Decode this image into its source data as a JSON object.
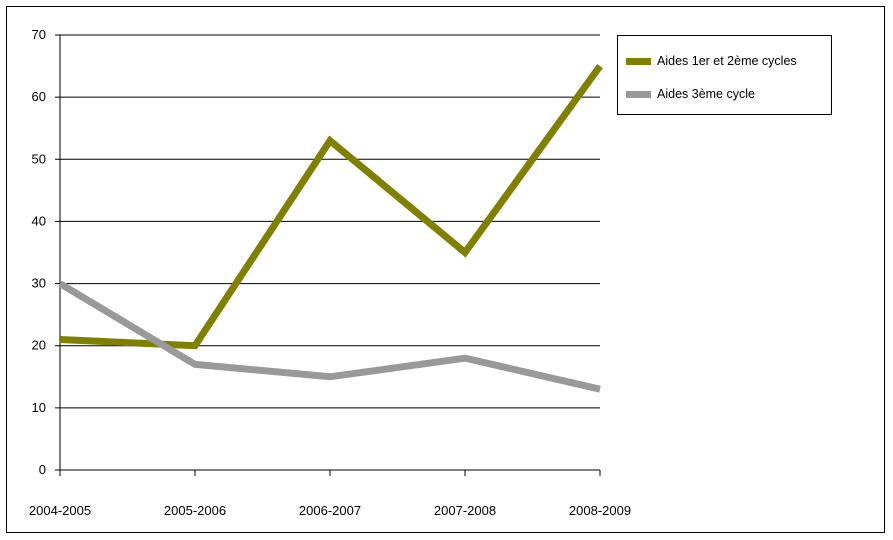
{
  "chart_data": {
    "type": "line",
    "categories": [
      "2004-2005",
      "2005-2006",
      "2006-2007",
      "2007-2008",
      "2008-2009"
    ],
    "series": [
      {
        "name": "Aides 1er et 2ème cycles",
        "color": "#808000",
        "values": [
          21,
          20,
          53,
          35,
          65
        ]
      },
      {
        "name": "Aides 3ème cycle",
        "color": "#999999",
        "values": [
          30,
          17,
          15,
          18,
          13
        ]
      }
    ],
    "ylim": [
      0,
      70
    ],
    "yticks": [
      0,
      10,
      20,
      30,
      40,
      50,
      60,
      70
    ],
    "grid": true,
    "legend_position": "top-right"
  }
}
